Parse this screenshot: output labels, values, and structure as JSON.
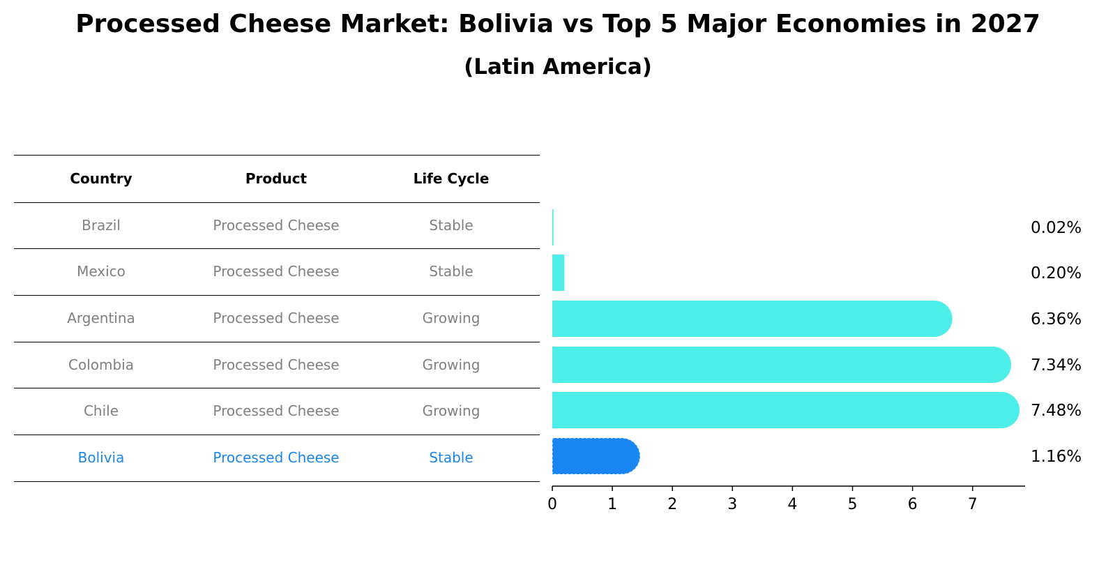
{
  "title": "Processed Cheese Market: Bolivia vs Top 5 Major Economies in 2027",
  "subtitle": "(Latin America)",
  "table": {
    "headers": [
      "Country",
      "Product",
      "Life Cycle"
    ],
    "rows": [
      {
        "country": "Brazil",
        "product": "Processed Cheese",
        "life_cycle": "Stable"
      },
      {
        "country": "Mexico",
        "product": "Processed Cheese",
        "life_cycle": "Stable"
      },
      {
        "country": "Argentina",
        "product": "Processed Cheese",
        "life_cycle": "Growing"
      },
      {
        "country": "Colombia",
        "product": "Processed Cheese",
        "life_cycle": "Growing"
      },
      {
        "country": "Chile",
        "product": "Processed Cheese",
        "life_cycle": "Growing"
      },
      {
        "country": "Bolivia",
        "product": "Processed Cheese",
        "life_cycle": "Stable"
      }
    ]
  },
  "chart_data": {
    "type": "bar",
    "orientation": "horizontal",
    "categories": [
      "Brazil",
      "Mexico",
      "Argentina",
      "Colombia",
      "Chile",
      "Bolivia"
    ],
    "values": [
      0.02,
      0.2,
      6.36,
      7.34,
      7.48,
      1.16
    ],
    "value_labels": [
      "0.02%",
      "0.20%",
      "6.36%",
      "7.34%",
      "7.48%",
      "1.16%"
    ],
    "highlight": "Bolivia",
    "xlim": [
      0,
      7.8
    ],
    "xticks": [
      0,
      1,
      2,
      3,
      4,
      5,
      6,
      7
    ],
    "grid": false,
    "colors": {
      "default": "#4deeea",
      "highlight": "#1a86f2"
    }
  }
}
